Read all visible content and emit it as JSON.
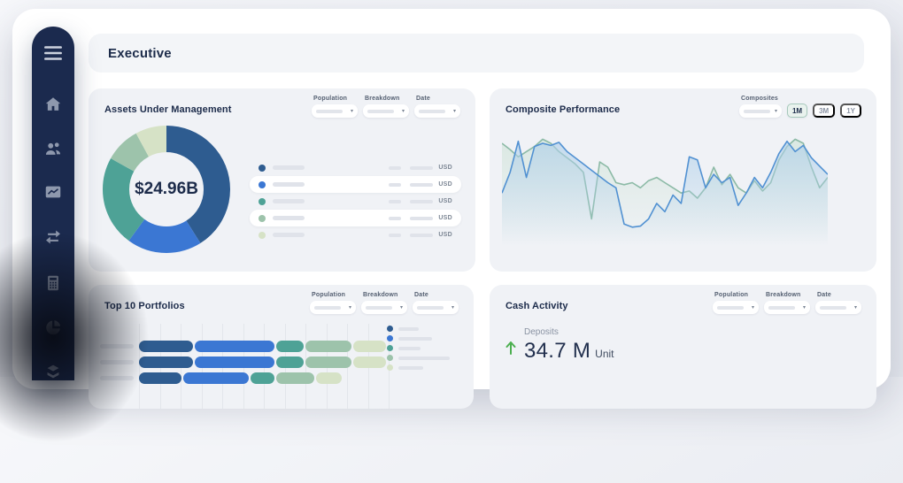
{
  "app": {
    "title": "Executive"
  },
  "sidebar": {
    "items": [
      "menu-icon",
      "home-icon",
      "users-icon",
      "performance-chart-icon",
      "transfer-arrows-icon",
      "calculator-icon",
      "pie-chart-icon",
      "layers-icon"
    ]
  },
  "filters": {
    "population": "Population",
    "breakdown": "Breakdown",
    "date": "Date",
    "composites": "Composites"
  },
  "cards": {
    "aum": {
      "title": "Assets Under Management",
      "center_value": "$24.96B",
      "currency": "USD",
      "list_rows": [
        {
          "color": "#2e5c90",
          "highlighted": false
        },
        {
          "color": "#3b77d3",
          "highlighted": true
        },
        {
          "color": "#4ea296",
          "highlighted": false
        },
        {
          "color": "#9dc3ab",
          "highlighted": true
        },
        {
          "color": "#d6e2c6",
          "highlighted": false
        }
      ]
    },
    "composite": {
      "title": "Composite Performance",
      "range_buttons": [
        "1M",
        "3M",
        "1Y"
      ],
      "selected_range": "1M"
    },
    "top10": {
      "title": "Top 10 Portfolios"
    },
    "cash": {
      "title": "Cash Activity",
      "deposits_label": "Deposits",
      "deposits_value": "34.7 M",
      "deposits_unit": "Unit",
      "trend": "up",
      "trend_color": "#4caf50"
    }
  },
  "chart_data": [
    {
      "id": "aum-donut",
      "type": "pie",
      "title": "Assets Under Management",
      "center_label": "$24.96B",
      "slices": [
        {
          "value": 41,
          "color": "#2e5c90"
        },
        {
          "value": 19,
          "color": "#3b77d3"
        },
        {
          "value": 23,
          "color": "#4ea296"
        },
        {
          "value": 9,
          "color": "#9dc3ab"
        },
        {
          "value": 8,
          "color": "#d6e2c6"
        }
      ]
    },
    {
      "id": "composite-performance",
      "type": "area",
      "title": "Composite Performance",
      "x_axis": "hidden",
      "y_axis": "hidden",
      "y_units": "relative-height-0-100",
      "series": [
        {
          "name": "composite-blue",
          "color": "#5191d2",
          "fill": "#aecfe9",
          "values": [
            40,
            60,
            90,
            55,
            85,
            88,
            86,
            89,
            80,
            74,
            68,
            62,
            56,
            50,
            45,
            10,
            7,
            8,
            15,
            30,
            22,
            38,
            30,
            75,
            72,
            45,
            58,
            50,
            55,
            28,
            40,
            55,
            45,
            60,
            78,
            90,
            80,
            86,
            74,
            66,
            58
          ]
        },
        {
          "name": "composite-green",
          "color": "#8cbaa6",
          "fill": "#cfe3d8",
          "values": [
            88,
            82,
            75,
            80,
            85,
            92,
            88,
            80,
            74,
            68,
            60,
            15,
            70,
            65,
            50,
            48,
            50,
            45,
            52,
            55,
            50,
            45,
            40,
            42,
            35,
            45,
            65,
            48,
            58,
            45,
            40,
            52,
            42,
            50,
            72,
            85,
            92,
            88,
            65,
            45,
            55
          ]
        }
      ]
    },
    {
      "id": "top-10-portfolios",
      "type": "bar",
      "orientation": "horizontal-stacked",
      "title": "Top 10 Portfolios",
      "colors": [
        "#2e5c90",
        "#3b77d3",
        "#4ea296",
        "#9dc3ab",
        "#d6e2c6"
      ],
      "rows": [
        {
          "segments": [
            61,
            90,
            31,
            52,
            37
          ]
        },
        {
          "segments": [
            61,
            90,
            31,
            52,
            37
          ]
        },
        {
          "segments": [
            48,
            74,
            27,
            43,
            29
          ]
        }
      ],
      "legend_bar_widths": [
        23,
        38,
        25,
        58,
        28
      ]
    }
  ]
}
